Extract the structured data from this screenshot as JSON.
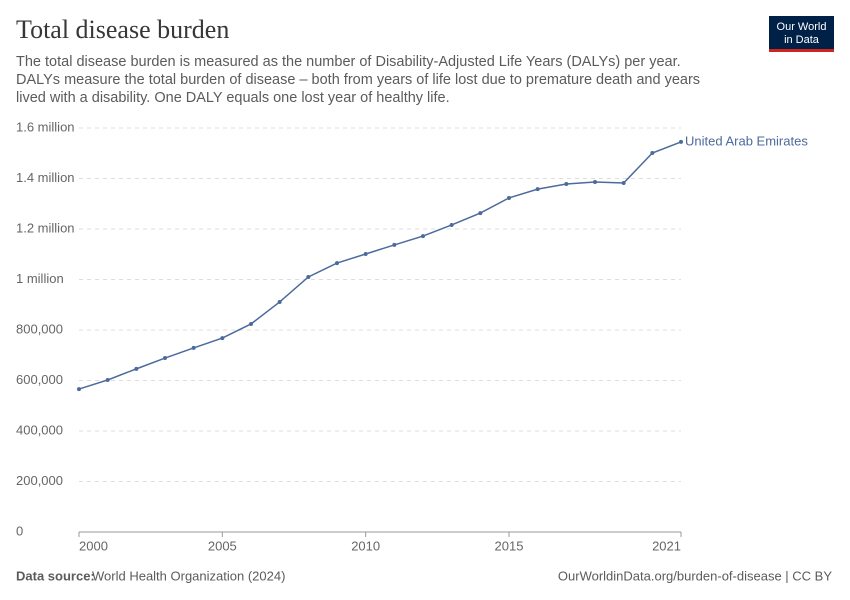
{
  "chart_data": {
    "type": "line",
    "title": "Total disease burden",
    "subtitle": [
      "The total disease burden is measured as the number of Disability-Adjusted Life Years (DALYs) per year.",
      "DALYs measure the total burden of disease – both from years of life lost due to premature death and years",
      "lived with a disability. One DALY equals one lost year of healthy life."
    ],
    "x": [
      2000,
      2001,
      2002,
      2003,
      2004,
      2005,
      2006,
      2007,
      2008,
      2009,
      2010,
      2011,
      2012,
      2013,
      2014,
      2015,
      2016,
      2017,
      2018,
      2019,
      2020,
      2021
    ],
    "series": [
      {
        "name": "United Arab Emirates",
        "color": "#4c6a9c",
        "values": [
          566000,
          602000,
          646000,
          689000,
          729000,
          768000,
          824000,
          911000,
          1010000,
          1065000,
          1101000,
          1137000,
          1172000,
          1216000,
          1263000,
          1323000,
          1358000,
          1378000,
          1386000,
          1382000,
          1501000,
          1545000
        ]
      }
    ],
    "xlim": [
      2000,
      2021
    ],
    "xticks": [
      2000,
      2005,
      2010,
      2015,
      2021
    ],
    "ylim": [
      0,
      1600000
    ],
    "yticks": [
      0,
      {
        "value": 200000,
        "label": "200,000"
      },
      {
        "value": 400000,
        "label": "400,000"
      },
      {
        "value": 600000,
        "label": "600,000"
      },
      {
        "value": 800000,
        "label": "800,000"
      },
      {
        "value": 1000000,
        "label": "1 million"
      },
      {
        "value": 1200000,
        "label": "1.2 million"
      },
      {
        "value": 1400000,
        "label": "1.4 million"
      },
      {
        "value": 1600000,
        "label": "1.6 million"
      }
    ],
    "grid": true
  },
  "logo": [
    "Our World",
    "in Data"
  ],
  "source": {
    "label": "Data source:",
    "text": "World Health Organization (2024)"
  },
  "url": "OurWorldinData.org/burden-of-disease | CC BY"
}
